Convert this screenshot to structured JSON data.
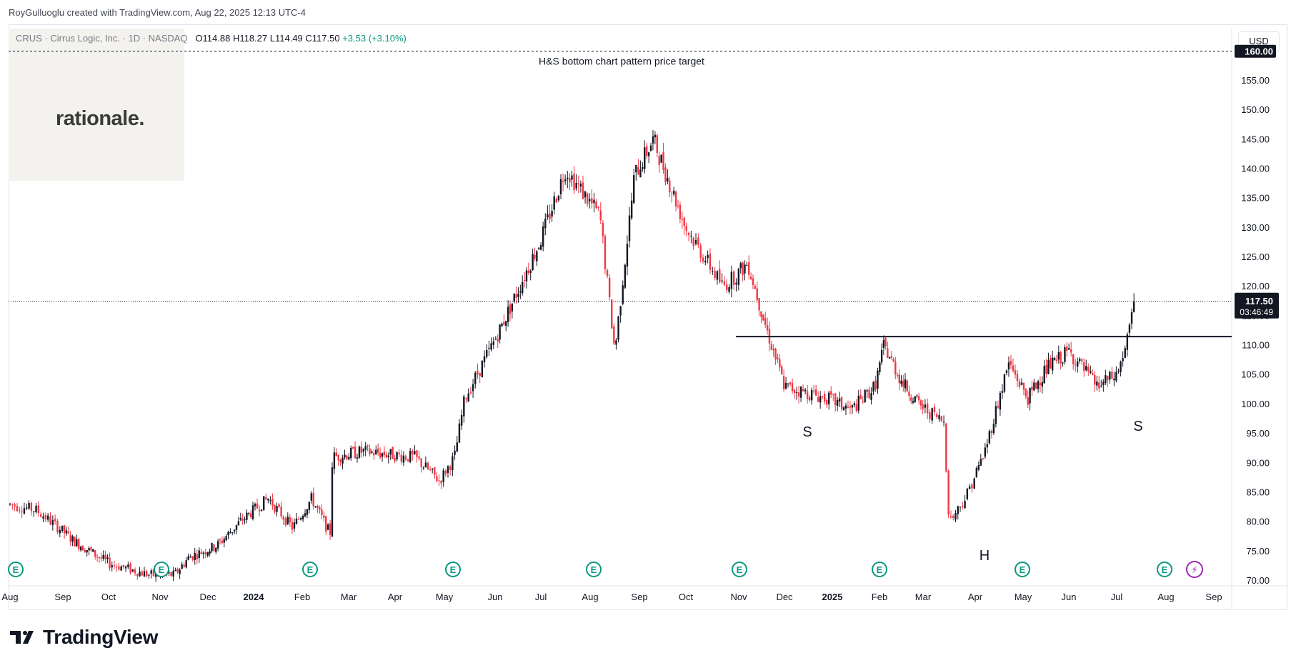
{
  "header": {
    "credit": "RoyGulluoglu created with TradingView.com, Aug 22, 2025 12:13 UTC-4"
  },
  "legend": {
    "symbol": "CRUS · Cirrus Logic, Inc. · 1D · NASDAQ",
    "open": "O114.88",
    "high": "H118.27",
    "low": "L114.49",
    "close": "C117.50",
    "change": "+3.53 (+3.10%)"
  },
  "watermark": {
    "text": "rationale."
  },
  "currency": "USD",
  "footer": {
    "brand": "TradingView"
  },
  "colors": {
    "up": "#131722",
    "down": "#f23645",
    "price_label": "#131722",
    "change": "#089981",
    "earnings": "#089981",
    "dividend": "#9c27b0"
  },
  "chart_data": {
    "type": "candlestick",
    "symbol": "CRUS",
    "interval": "1D",
    "ylim": [
      70,
      163
    ],
    "y_ticks": [
      70,
      75,
      80,
      85,
      90,
      95,
      100,
      105,
      110,
      115,
      120,
      125,
      130,
      135,
      140,
      145,
      150,
      155,
      160
    ],
    "y_tick_labels": [
      "70.00",
      "75.00",
      "80.00",
      "85.00",
      "90.00",
      "95.00",
      "100.00",
      "105.00",
      "110.00",
      "115.00",
      "120.00",
      "125.00",
      "130.00",
      "135.00",
      "140.00",
      "145.00",
      "150.00",
      "155.00",
      "160.00"
    ],
    "x_labels": [
      {
        "label": "Aug",
        "bold": false
      },
      {
        "label": "Sep",
        "bold": false
      },
      {
        "label": "Oct",
        "bold": false
      },
      {
        "label": "Nov",
        "bold": false
      },
      {
        "label": "Dec",
        "bold": false
      },
      {
        "label": "2024",
        "bold": true
      },
      {
        "label": "Feb",
        "bold": false
      },
      {
        "label": "Mar",
        "bold": false
      },
      {
        "label": "Apr",
        "bold": false
      },
      {
        "label": "May",
        "bold": false
      },
      {
        "label": "Jun",
        "bold": false
      },
      {
        "label": "Jul",
        "bold": false
      },
      {
        "label": "Aug",
        "bold": false
      },
      {
        "label": "Sep",
        "bold": false
      },
      {
        "label": "Oct",
        "bold": false
      },
      {
        "label": "Nov",
        "bold": false
      },
      {
        "label": "Dec",
        "bold": false
      },
      {
        "label": "2025",
        "bold": true
      },
      {
        "label": "Feb",
        "bold": false
      },
      {
        "label": "Mar",
        "bold": false
      },
      {
        "label": "Apr",
        "bold": false
      },
      {
        "label": "May",
        "bold": false
      },
      {
        "label": "Jun",
        "bold": false
      },
      {
        "label": "Jul",
        "bold": false
      },
      {
        "label": "Aug",
        "bold": false
      },
      {
        "label": "Sep",
        "bold": false
      }
    ],
    "price_path_anchors": [
      [
        0,
        83
      ],
      [
        0.5,
        82
      ],
      [
        1.2,
        77
      ],
      [
        2,
        73
      ],
      [
        2.8,
        71
      ],
      [
        3.3,
        71
      ],
      [
        3.6,
        74
      ],
      [
        4.2,
        76
      ],
      [
        4.7,
        80
      ],
      [
        5.3,
        84
      ],
      [
        5.8,
        79
      ],
      [
        6.2,
        84
      ],
      [
        6.6,
        78
      ],
      [
        6.65,
        91
      ],
      [
        7.3,
        92
      ],
      [
        8.4,
        91
      ],
      [
        8.9,
        87
      ],
      [
        9.2,
        91
      ],
      [
        9.4,
        101
      ],
      [
        10.3,
        116
      ],
      [
        11.0,
        128
      ],
      [
        11.5,
        140
      ],
      [
        12.2,
        132
      ],
      [
        12.5,
        109
      ],
      [
        12.9,
        139
      ],
      [
        13.3,
        145
      ],
      [
        14.0,
        130
      ],
      [
        14.7,
        120
      ],
      [
        15.2,
        124
      ],
      [
        15.6,
        113
      ],
      [
        16.0,
        103
      ],
      [
        16.9,
        101
      ],
      [
        17.4,
        99
      ],
      [
        17.9,
        103
      ],
      [
        18.1,
        110
      ],
      [
        18.5,
        104
      ],
      [
        18.9,
        100
      ],
      [
        19.4,
        97
      ],
      [
        19.5,
        80
      ],
      [
        19.8,
        84
      ],
      [
        20.2,
        92
      ],
      [
        20.7,
        107
      ],
      [
        21.1,
        101
      ],
      [
        21.5,
        106
      ],
      [
        22.0,
        109
      ],
      [
        22.6,
        103
      ],
      [
        23.0,
        105
      ],
      [
        23.2,
        110
      ],
      [
        23.35,
        117.5
      ]
    ],
    "last_price": 117.5,
    "last_price_label": "117.50",
    "countdown": "03:46:49",
    "target_price": 160,
    "target_price_label": "160.00",
    "neckline": 111.5,
    "annotations": {
      "target": "H&S bottom chart pattern price target",
      "left_shoulder": "S",
      "head": "H",
      "right_shoulder": "S"
    },
    "earnings_markers": [
      "E",
      "E",
      "E",
      "E",
      "E",
      "E",
      "E",
      "E",
      "E"
    ]
  }
}
